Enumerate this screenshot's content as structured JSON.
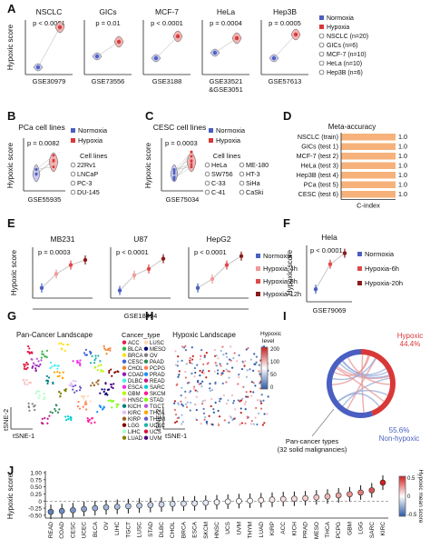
{
  "figure": {
    "panel_letters": [
      "A",
      "B",
      "C",
      "D",
      "E",
      "F",
      "G",
      "H",
      "I",
      "J"
    ]
  },
  "colors": {
    "normoxia": "#4a5fc1",
    "hypoxia": "#d93838",
    "violin_blue": "#c8c8f0",
    "violin_red": "#f3b3b3",
    "bar_orange": "#f6b27a",
    "h4": "#f19a9a",
    "h8": "#e04848",
    "h12": "#8b1a1a"
  },
  "chart_data": [
    {
      "panel": "A",
      "type": "scatter",
      "ylabel": "Hypoxic score",
      "subplots": [
        {
          "title": "NSCLC",
          "p": "p < 0.0001",
          "dataset": "GSE30979",
          "normoxia": -1.1,
          "hypoxia": 1.1
        },
        {
          "title": "GICs",
          "p": "p = 0.01",
          "dataset": "GSE73556",
          "normoxia": -0.5,
          "hypoxia": 0.3
        },
        {
          "title": "MCF-7",
          "p": "p < 0.0001",
          "dataset": "GSE3188",
          "normoxia": -0.6,
          "hypoxia": 0.6
        },
        {
          "title": "HeLa",
          "p": "p = 0.0004",
          "dataset": "GSE33521 &GSE3051",
          "normoxia": -0.3,
          "hypoxia": 0.5
        },
        {
          "title": "Hep3B",
          "p": "p = 0.0005",
          "dataset": "GSE57613",
          "normoxia": -0.6,
          "hypoxia": 0.7
        }
      ],
      "legend": [
        "Normoxia",
        "Hypoxia",
        "NSCLC (n=20)",
        "GICs (n=6)",
        "MCF-7 (n=10)",
        "HeLa (n=10)",
        "Hep3B (n=6)"
      ]
    },
    {
      "panel": "B",
      "type": "scatter",
      "title": "PCa cell lines",
      "p": "p = 0.0082",
      "ylabel": "Hypoxic score",
      "dataset": "GSE55935",
      "legend": [
        "Normoxia",
        "Hypoxia"
      ],
      "cell_lines_title": "Cell lines",
      "cell_lines": [
        "22Rv1",
        "LNCaP",
        "PC-3",
        "DU-145"
      ]
    },
    {
      "panel": "C",
      "type": "scatter",
      "title": "CESC cell lines",
      "p": "p = 0.0003",
      "ylabel": "Hypoxic score",
      "dataset": "GSE75034",
      "legend": [
        "Normoxia",
        "Hypoxia"
      ],
      "cell_lines_title": "Cell lines",
      "cell_lines": [
        "HeLa",
        "ME-180",
        "SW756",
        "HT-3",
        "C-33",
        "SiHa",
        "C-41",
        "CaSki"
      ]
    },
    {
      "panel": "D",
      "type": "bar",
      "title": "Meta-accuracy",
      "xlabel": "C-index",
      "categories": [
        "NSCLC (train)",
        "GICs (test 1)",
        "MCF-7 (test 2)",
        "HeLa (test 3)",
        "Hep3B (test 4)",
        "PCa (test 5)",
        "CESC (test 6)"
      ],
      "values": [
        1.0,
        1.0,
        1.0,
        1.0,
        1.0,
        1.0,
        1.0
      ],
      "value_labels": [
        "1.0",
        "1.0",
        "1.0",
        "1.0",
        "1.0",
        "1.0",
        "1.0"
      ],
      "xlim": [
        0,
        1
      ]
    },
    {
      "panel": "E",
      "type": "line",
      "ylabel": "Hypoxic score",
      "dataset": "GSE18494",
      "subplots": [
        {
          "title": "MB231",
          "p": "p = 0.0003",
          "values": [
            -0.6,
            -0.05,
            0.3,
            0.5
          ]
        },
        {
          "title": "U87",
          "p": "p < 0.0001",
          "values": [
            -0.7,
            -0.1,
            0.15,
            0.55
          ]
        },
        {
          "title": "HepG2",
          "p": "p < 0.0001",
          "values": [
            -0.6,
            -0.25,
            0.3,
            0.65
          ]
        }
      ],
      "legend": [
        "Normoxia",
        "Hypoxia-4h",
        "Hypoxia-8h",
        "Hypoxia-12h"
      ]
    },
    {
      "panel": "F",
      "type": "line",
      "title": "Hela",
      "p": "p < 0.0001",
      "ylabel": "Hypoxic score",
      "dataset": "GSE79069",
      "values": [
        -0.6,
        0.2,
        0.55
      ],
      "legend": [
        "Normoxia",
        "Hypoxia-6h",
        "Hypoxia-20h"
      ]
    },
    {
      "panel": "G",
      "type": "scatter",
      "title": "Pan-Cancer Landscape",
      "xlabel": "tSNE-1",
      "ylabel": "tSNE-2",
      "legend_title": "Cancer_type",
      "legend_col1": [
        "ACC",
        "BLCA",
        "BRCA",
        "CESC",
        "CHOL",
        "COAD",
        "DLBC",
        "ESCA",
        "GBM",
        "HNSC",
        "KICH",
        "KIRC",
        "KIRP",
        "LGG",
        "LIHC",
        "LUAD"
      ],
      "legend_col2": [
        "LUSC",
        "MESO",
        "OV",
        "PAAD",
        "PCPG",
        "PRAD",
        "READ",
        "SARC",
        "SKCM",
        "STAD",
        "TGCT",
        "THCA",
        "THYM",
        "UCEC",
        "UCS",
        "UVM"
      ],
      "palette": [
        "#e6194b",
        "#3cb44b",
        "#ffe119",
        "#4363d8",
        "#f58231",
        "#911eb4",
        "#46f0f0",
        "#f032e6",
        "#bcf60c",
        "#fabebe",
        "#008080",
        "#e6beff",
        "#9a6324",
        "#800000",
        "#aaffc3",
        "#808000",
        "#ffd8b1",
        "#000075",
        "#808080",
        "#2e8b57",
        "#ff7f50",
        "#1e90ff",
        "#c71585",
        "#00ced1",
        "#ff1493",
        "#7cfc00",
        "#ba55d3",
        "#ffa500",
        "#6a5acd",
        "#20b2aa",
        "#dc143c",
        "#4b0082"
      ]
    },
    {
      "panel": "H",
      "type": "scatter",
      "title": "Hypoxic Landscape",
      "xlabel": "tSNE-1",
      "ylabel": "tSNE-2",
      "colorbar_title": "Hypoxic level",
      "colorbar_ticks": [
        "200",
        "100",
        "50",
        "0"
      ]
    },
    {
      "panel": "J",
      "type": "pie",
      "slices": [
        {
          "label": "Hypoxic",
          "value": 44.4,
          "pct": "44.4%"
        },
        {
          "label": "Non-hypoxic",
          "value": 55.6,
          "pct": "55.6%"
        }
      ],
      "caption": "Pan-cancer types (32 solid malignancies)"
    },
    {
      "panel": "I",
      "type": "scatter",
      "ylabel": "Hypoxic score",
      "ylim": [
        -0.6,
        1.0
      ],
      "yticks": [
        "1.00",
        "0.75",
        "0.50",
        "0.25",
        "0",
        "-0.25",
        "-0.50"
      ],
      "categories": [
        "READ",
        "COAD",
        "CESC",
        "UCEC",
        "BLCA",
        "OV",
        "LIHC",
        "TGCT",
        "LUSC",
        "STAD",
        "DLBC",
        "CHOL",
        "BRCA",
        "ESCA",
        "SKCM",
        "HNSC",
        "UCS",
        "UVM",
        "THYM",
        "LUAD",
        "KIRP",
        "ACC",
        "KICH",
        "PRAD",
        "MESO",
        "THCA",
        "PCPG",
        "GBM",
        "LGG",
        "SARC",
        "KIRC"
      ],
      "values": [
        -0.38,
        -0.35,
        -0.32,
        -0.28,
        -0.25,
        -0.22,
        -0.2,
        -0.18,
        -0.16,
        -0.14,
        -0.12,
        -0.1,
        -0.09,
        -0.08,
        -0.06,
        -0.04,
        -0.02,
        0.0,
        0.01,
        0.03,
        0.05,
        0.07,
        0.08,
        0.1,
        0.13,
        0.16,
        0.2,
        0.24,
        0.3,
        0.38,
        0.65
      ],
      "colorbar_title": "Hypoxic mean score",
      "colorbar_ticks": [
        "0.5",
        "0",
        "-0.5"
      ]
    }
  ]
}
